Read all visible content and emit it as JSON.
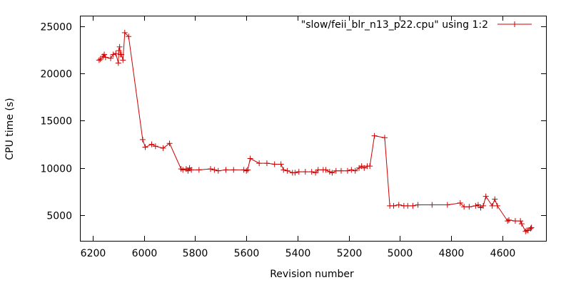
{
  "chart_data": {
    "type": "line",
    "title": "",
    "xlabel": "Revision number",
    "ylabel": "CPU time (s)",
    "xlim": [
      6250,
      4430
    ],
    "ylim": [
      2300,
      26100
    ],
    "x_reversed": true,
    "xticks": [
      6200,
      6000,
      5800,
      5600,
      5400,
      5200,
      5000,
      4800,
      4600
    ],
    "yticks": [
      5000,
      10000,
      15000,
      20000,
      25000
    ],
    "grid": false,
    "legend": "top-right",
    "series": [
      {
        "name": "\"slow/feii_blr_n13_p22.cpu\" using 1:2",
        "color": "#cc0000",
        "marker": "plus",
        "points": [
          [
            6175,
            21400
          ],
          [
            6170,
            21500
          ],
          [
            6160,
            21800
          ],
          [
            6155,
            22000
          ],
          [
            6150,
            21700
          ],
          [
            6130,
            21600
          ],
          [
            6120,
            22000
          ],
          [
            6110,
            22100
          ],
          [
            6100,
            21100
          ],
          [
            6098,
            22400
          ],
          [
            6095,
            22800
          ],
          [
            6092,
            22000
          ],
          [
            6088,
            22000
          ],
          [
            6082,
            21400
          ],
          [
            6075,
            24300
          ],
          [
            6060,
            23900
          ],
          [
            6005,
            13000
          ],
          [
            5995,
            12200
          ],
          [
            5970,
            12500
          ],
          [
            5955,
            12300
          ],
          [
            5925,
            12100
          ],
          [
            5900,
            12600
          ],
          [
            5855,
            9900
          ],
          [
            5848,
            9800
          ],
          [
            5835,
            9900
          ],
          [
            5828,
            9700
          ],
          [
            5822,
            10000
          ],
          [
            5815,
            9800
          ],
          [
            5785,
            9800
          ],
          [
            5740,
            9900
          ],
          [
            5725,
            9800
          ],
          [
            5710,
            9700
          ],
          [
            5680,
            9800
          ],
          [
            5650,
            9800
          ],
          [
            5610,
            9800
          ],
          [
            5600,
            9700
          ],
          [
            5595,
            9800
          ],
          [
            5585,
            11000
          ],
          [
            5550,
            10500
          ],
          [
            5520,
            10500
          ],
          [
            5490,
            10400
          ],
          [
            5465,
            10400
          ],
          [
            5455,
            9800
          ],
          [
            5440,
            9700
          ],
          [
            5420,
            9500
          ],
          [
            5410,
            9500
          ],
          [
            5395,
            9600
          ],
          [
            5370,
            9600
          ],
          [
            5345,
            9600
          ],
          [
            5330,
            9500
          ],
          [
            5320,
            9800
          ],
          [
            5300,
            9800
          ],
          [
            5290,
            9800
          ],
          [
            5275,
            9600
          ],
          [
            5265,
            9500
          ],
          [
            5250,
            9700
          ],
          [
            5230,
            9700
          ],
          [
            5205,
            9700
          ],
          [
            5190,
            9800
          ],
          [
            5175,
            9700
          ],
          [
            5160,
            10000
          ],
          [
            5150,
            10200
          ],
          [
            5140,
            10000
          ],
          [
            5128,
            10200
          ],
          [
            5118,
            10200
          ],
          [
            5100,
            13400
          ],
          [
            5060,
            13200
          ],
          [
            5040,
            6000
          ],
          [
            5025,
            6000
          ],
          [
            5005,
            6100
          ],
          [
            4985,
            6000
          ],
          [
            4970,
            6000
          ],
          [
            4950,
            6000
          ],
          [
            4930,
            6100
          ],
          [
            4875,
            6100
          ],
          [
            4815,
            6100
          ],
          [
            4765,
            6300
          ],
          [
            4750,
            5900
          ],
          [
            4730,
            5900
          ],
          [
            4705,
            6000
          ],
          [
            4695,
            6100
          ],
          [
            4685,
            5800
          ],
          [
            4675,
            6000
          ],
          [
            4665,
            7000
          ],
          [
            4640,
            6000
          ],
          [
            4630,
            6700
          ],
          [
            4620,
            6000
          ],
          [
            4580,
            4400
          ],
          [
            4575,
            4500
          ],
          [
            4550,
            4400
          ],
          [
            4530,
            4400
          ],
          [
            4525,
            4100
          ],
          [
            4510,
            3300
          ],
          [
            4505,
            3400
          ],
          [
            4500,
            3400
          ],
          [
            4490,
            3600
          ],
          [
            4487,
            3700
          ]
        ]
      }
    ]
  }
}
